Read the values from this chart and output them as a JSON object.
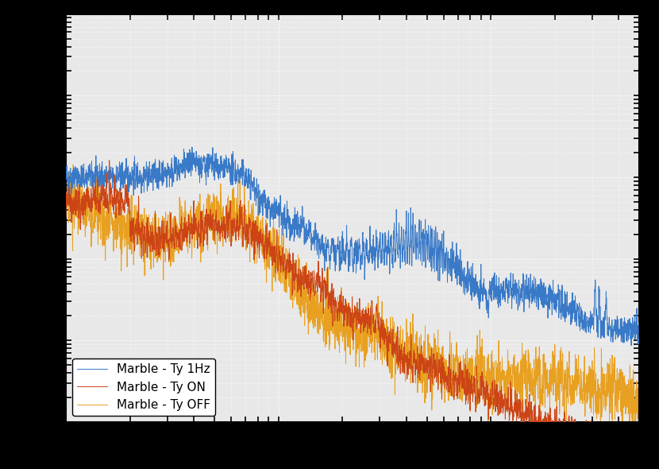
{
  "title": "",
  "xlabel": "",
  "ylabel": "",
  "xlim": [
    1,
    500
  ],
  "ylim": [
    1e-09,
    0.0001
  ],
  "plot_area_color": "#e8e8e8",
  "outer_color": "#000000",
  "grid_color": "#ffffff",
  "line1_color": "#3879c8",
  "line2_color": "#cc4415",
  "line3_color": "#e8a020",
  "line1_label": "Marble - Ty 1Hz",
  "line2_label": "Marble - Ty ON",
  "line3_label": "Marble - Ty OFF",
  "legend_loc": "lower left",
  "legend_fontsize": 11,
  "tick_fontsize": 11,
  "linewidth": 0.7
}
